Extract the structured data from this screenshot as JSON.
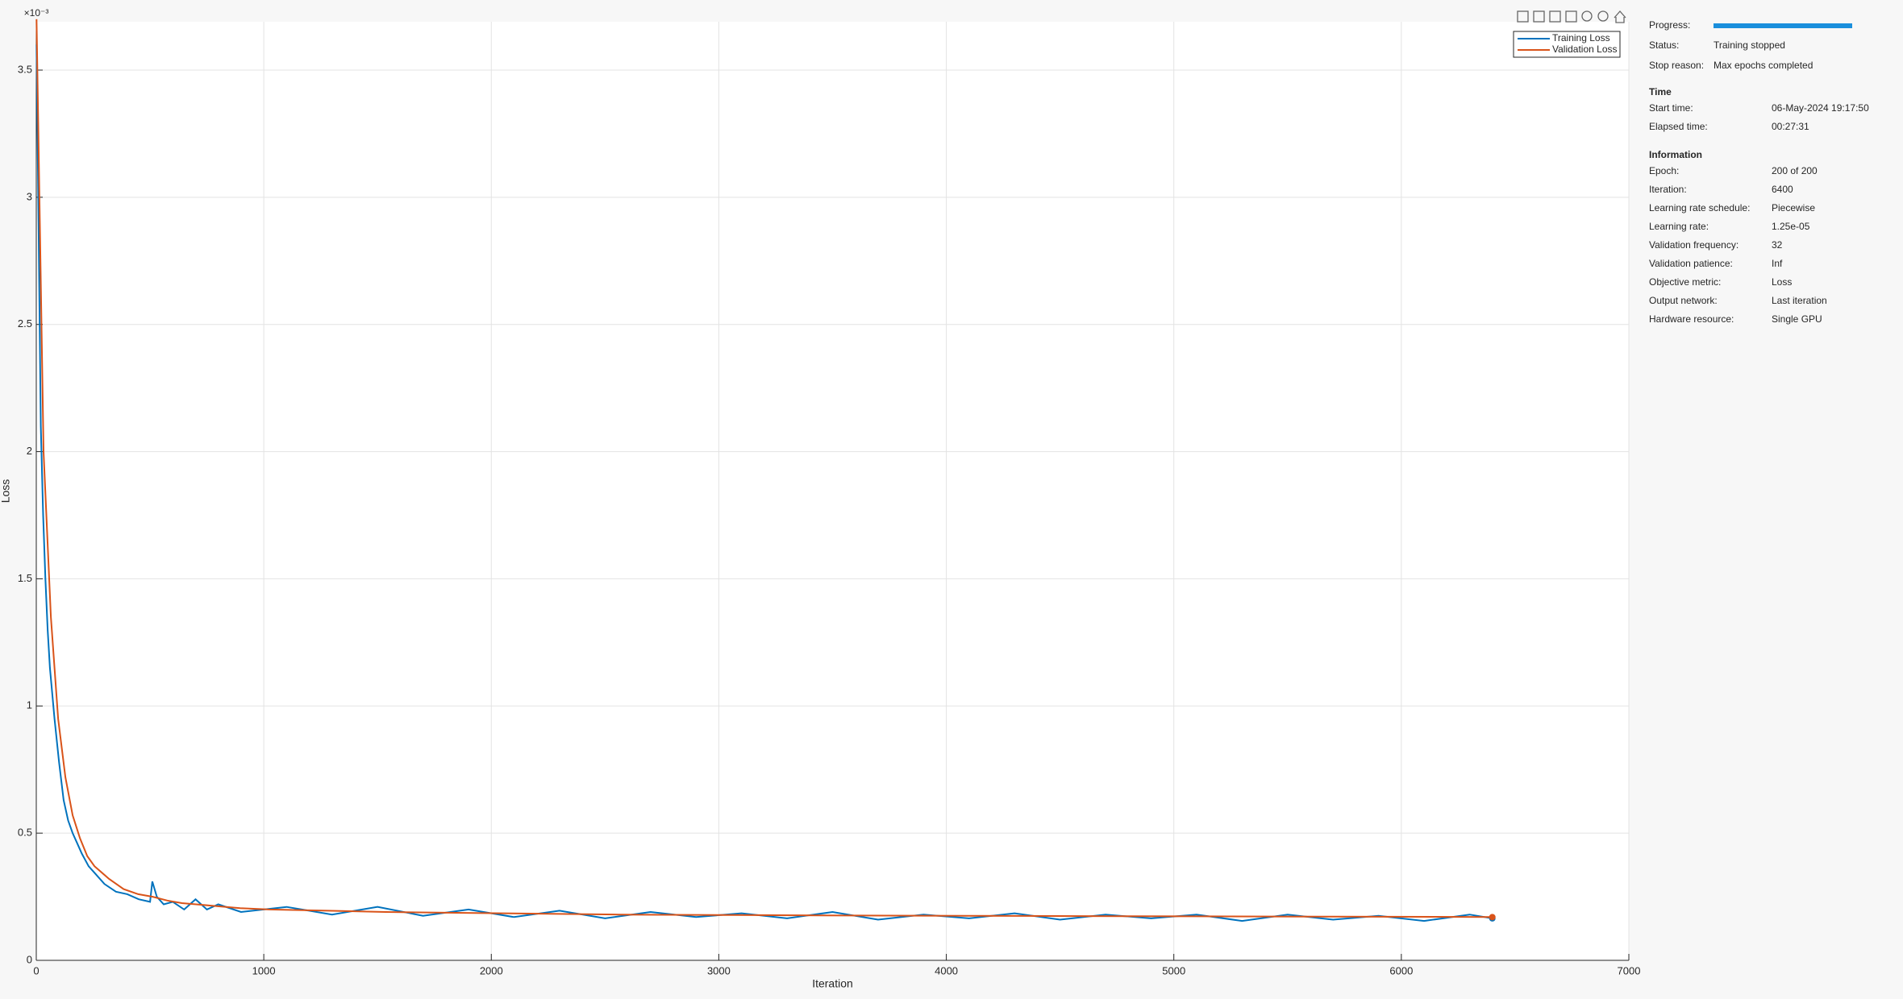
{
  "chart_data": {
    "type": "line",
    "x_label": "Iteration",
    "y_label": "Loss",
    "y_exponent": "×10⁻³",
    "xlim": [
      0,
      7000
    ],
    "xticks": [
      0,
      1000,
      2000,
      3000,
      4000,
      5000,
      6000,
      7000
    ],
    "ylim": [
      0,
      3.69
    ],
    "yticks": [
      0,
      0.5,
      1,
      1.5,
      2,
      2.5,
      3,
      3.5
    ],
    "grid": true,
    "series": [
      {
        "name": "Training Loss",
        "color": "#0072bd",
        "x": [
          1,
          10,
          20,
          30,
          40,
          50,
          60,
          80,
          100,
          120,
          140,
          160,
          180,
          200,
          230,
          260,
          300,
          350,
          400,
          450,
          500,
          510,
          530,
          560,
          600,
          650,
          700,
          750,
          800,
          900,
          1100,
          1300,
          1500,
          1700,
          1900,
          2100,
          2300,
          2500,
          2700,
          2900,
          3100,
          3300,
          3500,
          3700,
          3900,
          4100,
          4300,
          4500,
          4700,
          4900,
          5100,
          5300,
          5500,
          5700,
          5900,
          6100,
          6300,
          6400
        ],
        "values": [
          3.6,
          2.9,
          2.1,
          1.75,
          1.5,
          1.3,
          1.15,
          0.95,
          0.78,
          0.63,
          0.55,
          0.5,
          0.46,
          0.42,
          0.37,
          0.34,
          0.3,
          0.27,
          0.26,
          0.24,
          0.23,
          0.31,
          0.25,
          0.22,
          0.23,
          0.2,
          0.24,
          0.2,
          0.22,
          0.19,
          0.21,
          0.18,
          0.21,
          0.175,
          0.2,
          0.17,
          0.195,
          0.165,
          0.19,
          0.17,
          0.185,
          0.165,
          0.19,
          0.16,
          0.18,
          0.165,
          0.185,
          0.16,
          0.18,
          0.165,
          0.18,
          0.155,
          0.18,
          0.16,
          0.175,
          0.155,
          0.18,
          0.165
        ]
      },
      {
        "name": "Validation Loss",
        "color": "#d95319",
        "x": [
          1,
          32,
          64,
          96,
          128,
          160,
          192,
          224,
          256,
          320,
          384,
          448,
          512,
          576,
          640,
          768,
          896,
          1024,
          1280,
          1536,
          2048,
          2560,
          3072,
          3584,
          4096,
          4608,
          5120,
          5632,
          6144,
          6400
        ],
        "values": [
          3.7,
          2.0,
          1.35,
          0.95,
          0.72,
          0.57,
          0.48,
          0.41,
          0.37,
          0.32,
          0.28,
          0.26,
          0.25,
          0.235,
          0.225,
          0.215,
          0.205,
          0.2,
          0.195,
          0.19,
          0.185,
          0.18,
          0.178,
          0.176,
          0.175,
          0.174,
          0.173,
          0.172,
          0.171,
          0.17
        ]
      }
    ]
  },
  "panel": {
    "progress": {
      "label": "Progress:",
      "value": 100
    },
    "status_rows": [
      [
        "Status:",
        "Training stopped"
      ],
      [
        "Stop reason:",
        "Max epochs completed"
      ]
    ],
    "sections": [
      {
        "title": "Time",
        "rows": [
          [
            "Start time:",
            "06-May-2024 19:17:50"
          ],
          [
            "Elapsed time:",
            "00:27:31"
          ]
        ]
      },
      {
        "title": "Information",
        "rows": [
          [
            "Epoch:",
            "200 of 200"
          ],
          [
            "Iteration:",
            "6400"
          ],
          [
            "Learning rate schedule:",
            "Piecewise"
          ],
          [
            "Learning rate:",
            "1.25e-05"
          ],
          [
            "Validation frequency:",
            "32"
          ],
          [
            "Validation patience:",
            "Inf"
          ],
          [
            "Objective metric:",
            "Loss"
          ],
          [
            "Output network:",
            "Last iteration"
          ],
          [
            "Hardware resource:",
            "Single GPU"
          ]
        ]
      }
    ]
  }
}
